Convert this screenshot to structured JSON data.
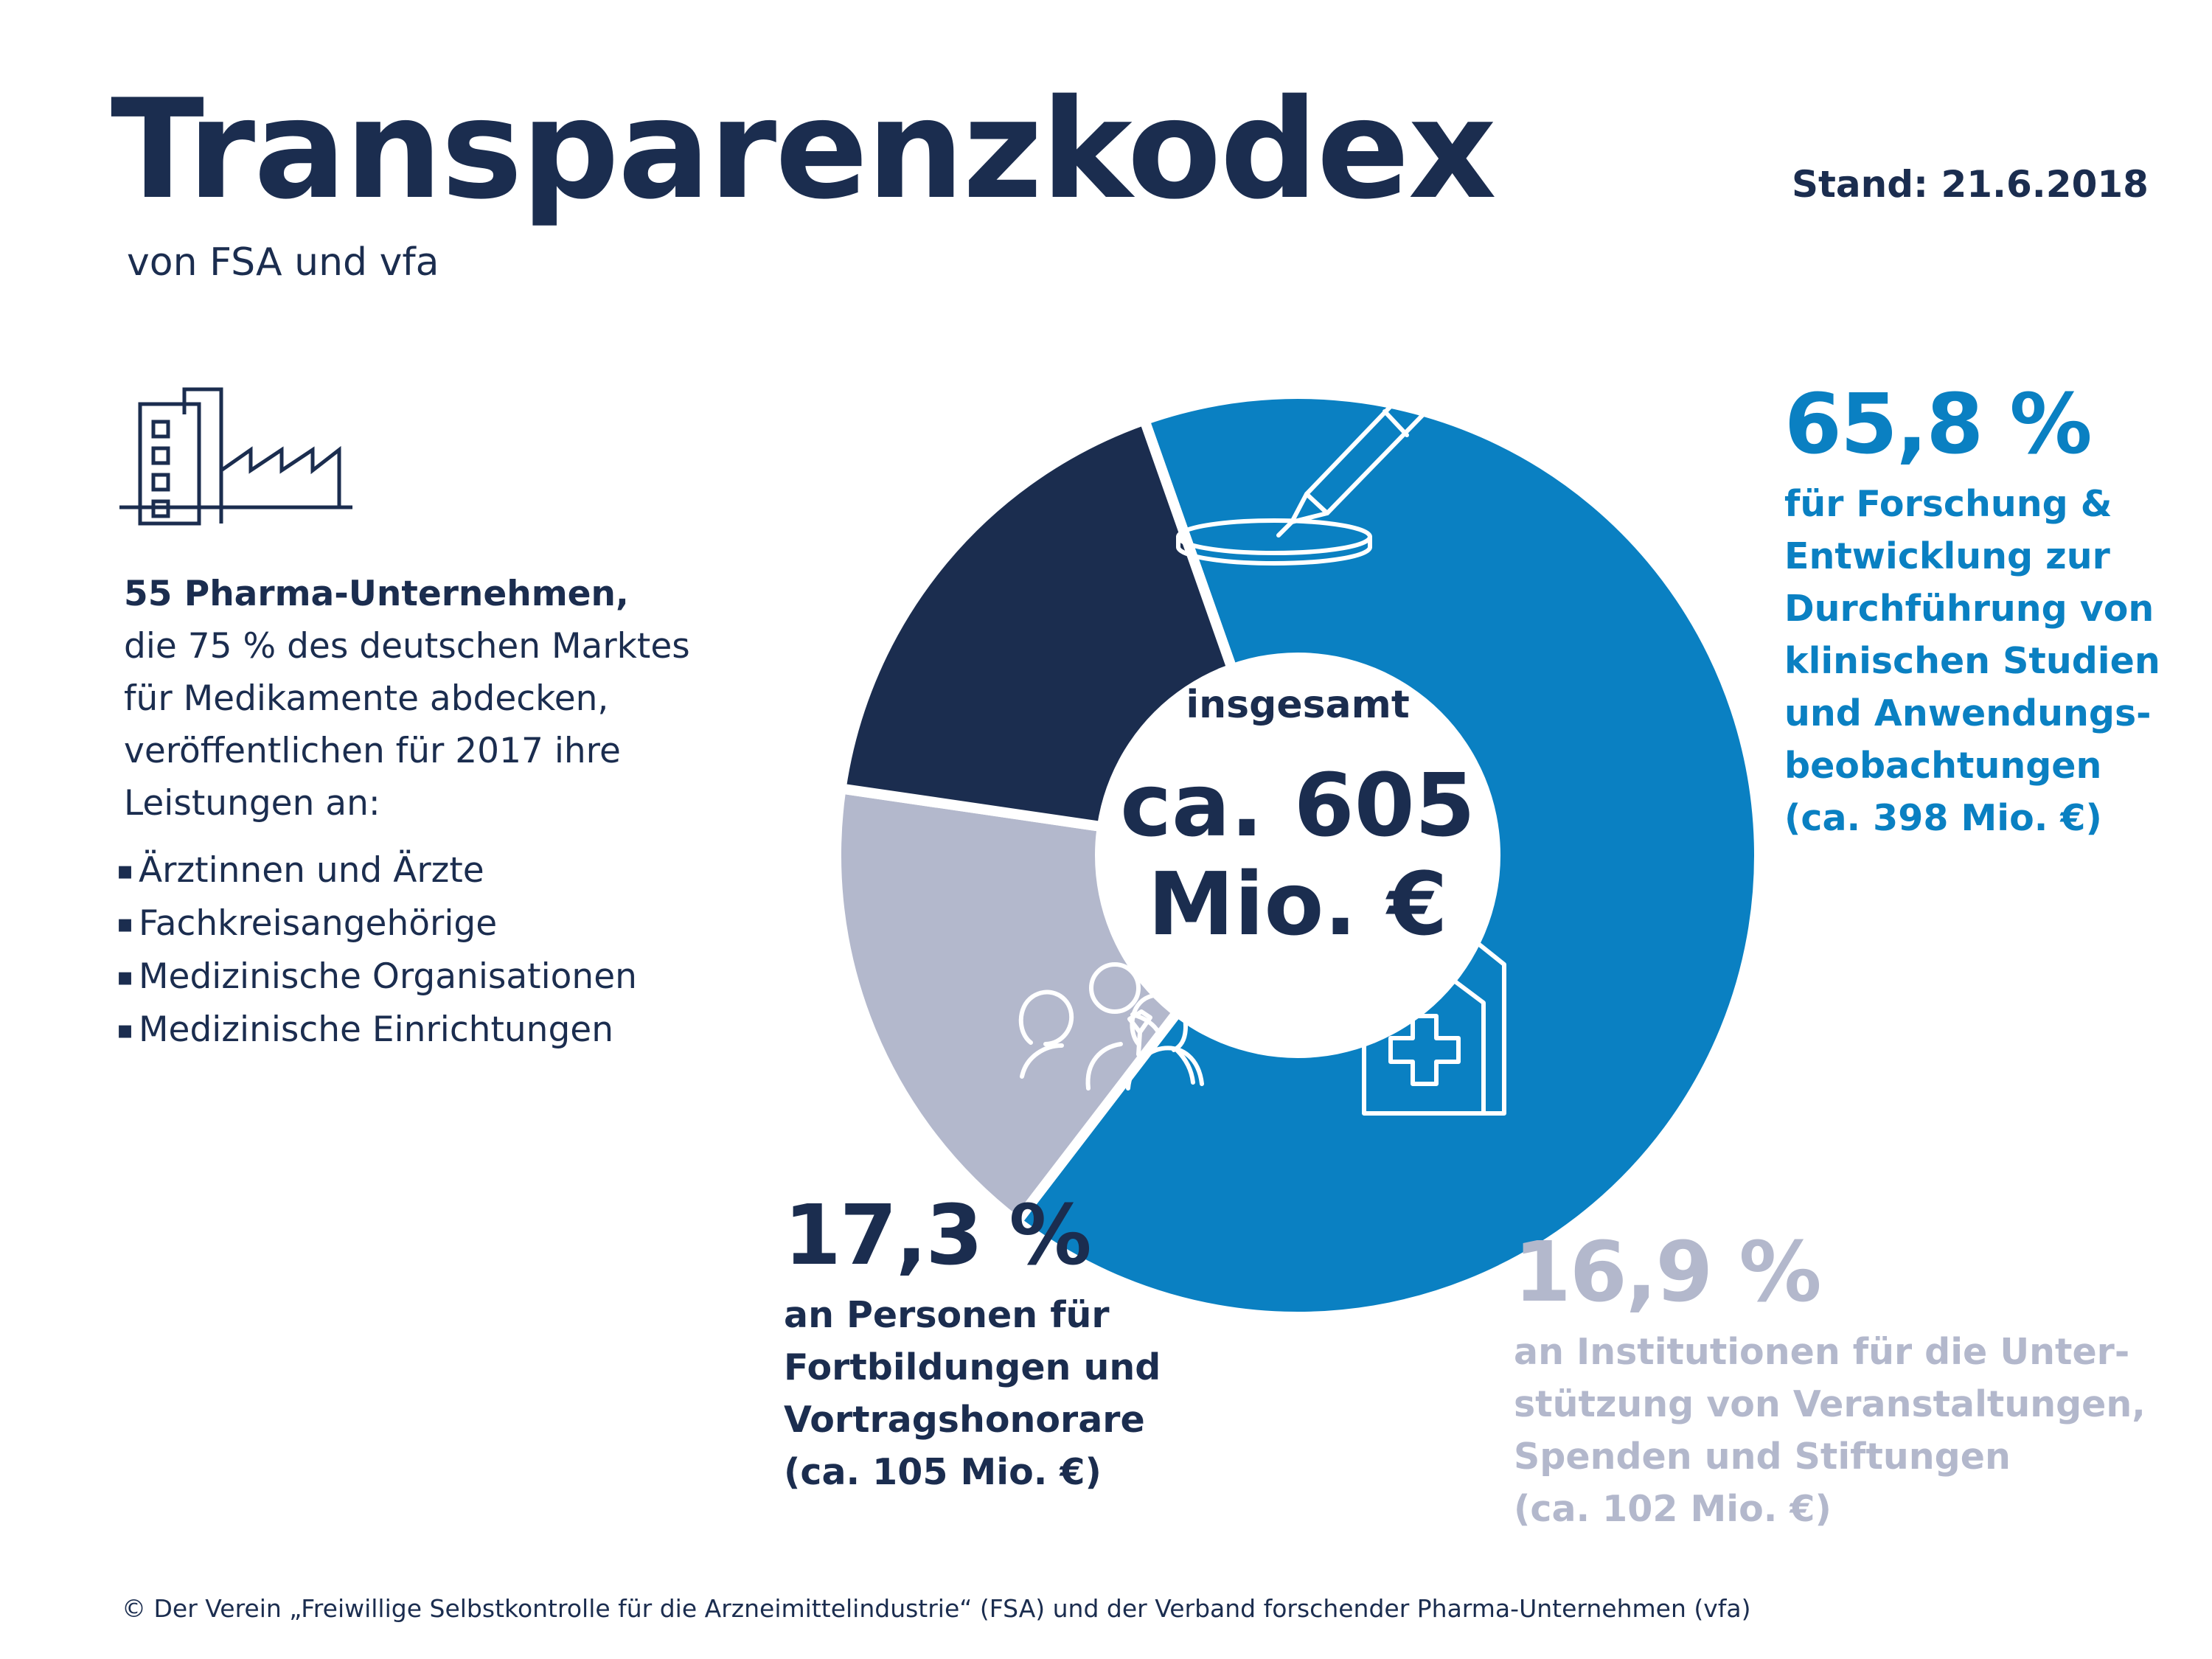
{
  "header": {
    "title": "Transparenzkodex",
    "subtitle": "von FSA und vfa",
    "stand": "Stand: 21.6.2018"
  },
  "intro": {
    "lead": "55 Pharma-Unternehmen,",
    "lines": [
      "die 75 % des deutschen Marktes",
      "für Medikamente abdecken,",
      "veröffentlichen für 2017 ihre",
      "Leistungen an:"
    ],
    "bullets": [
      "Ärztinnen und Ärzte",
      "Fachkreisangehörige",
      "Medizinische Organisationen",
      "Medizinische Einrichtungen"
    ]
  },
  "center": {
    "label": "insgesamt",
    "value_line1": "ca. 605",
    "value_line2": "Mio. €"
  },
  "chart_data": {
    "type": "pie",
    "total": 605,
    "unit": "Mio. €",
    "series": [
      {
        "pct_label": "65,8 %",
        "value_pct": 65.8,
        "amount": 398,
        "color": "#0a80c2",
        "icon": "pipette-petri-dish-icon",
        "lines": [
          "für Forschung &",
          "Entwicklung zur",
          "Durchführung von",
          "klinischen Studien",
          "und Anwendungs-",
          "beobachtungen",
          "(ca. 398 Mio. €)"
        ]
      },
      {
        "pct_label": "16,9 %",
        "value_pct": 16.9,
        "amount": 102,
        "color": "#b3b8cc",
        "icon": "hospital-cross-icon",
        "lines": [
          "an Institutionen für die Unter-",
          "stützung von Veranstaltungen,",
          "Spenden und Stiftungen",
          "(ca. 102 Mio. €)"
        ]
      },
      {
        "pct_label": "17,3 %",
        "value_pct": 17.3,
        "amount": 105,
        "color": "#1b2d4f",
        "icon": "people-group-icon",
        "lines": [
          "an Personen für",
          "Fortbildungen und",
          "Vortragshonorare",
          "(ca. 105 Mio. €)"
        ]
      }
    ]
  },
  "footer": {
    "copyright": "© Der Verein „Freiwillige Selbstkontrolle für die Arzneimittelindustrie“ (FSA) und der Verband forschender Pharma-Unternehmen (vfa)"
  }
}
